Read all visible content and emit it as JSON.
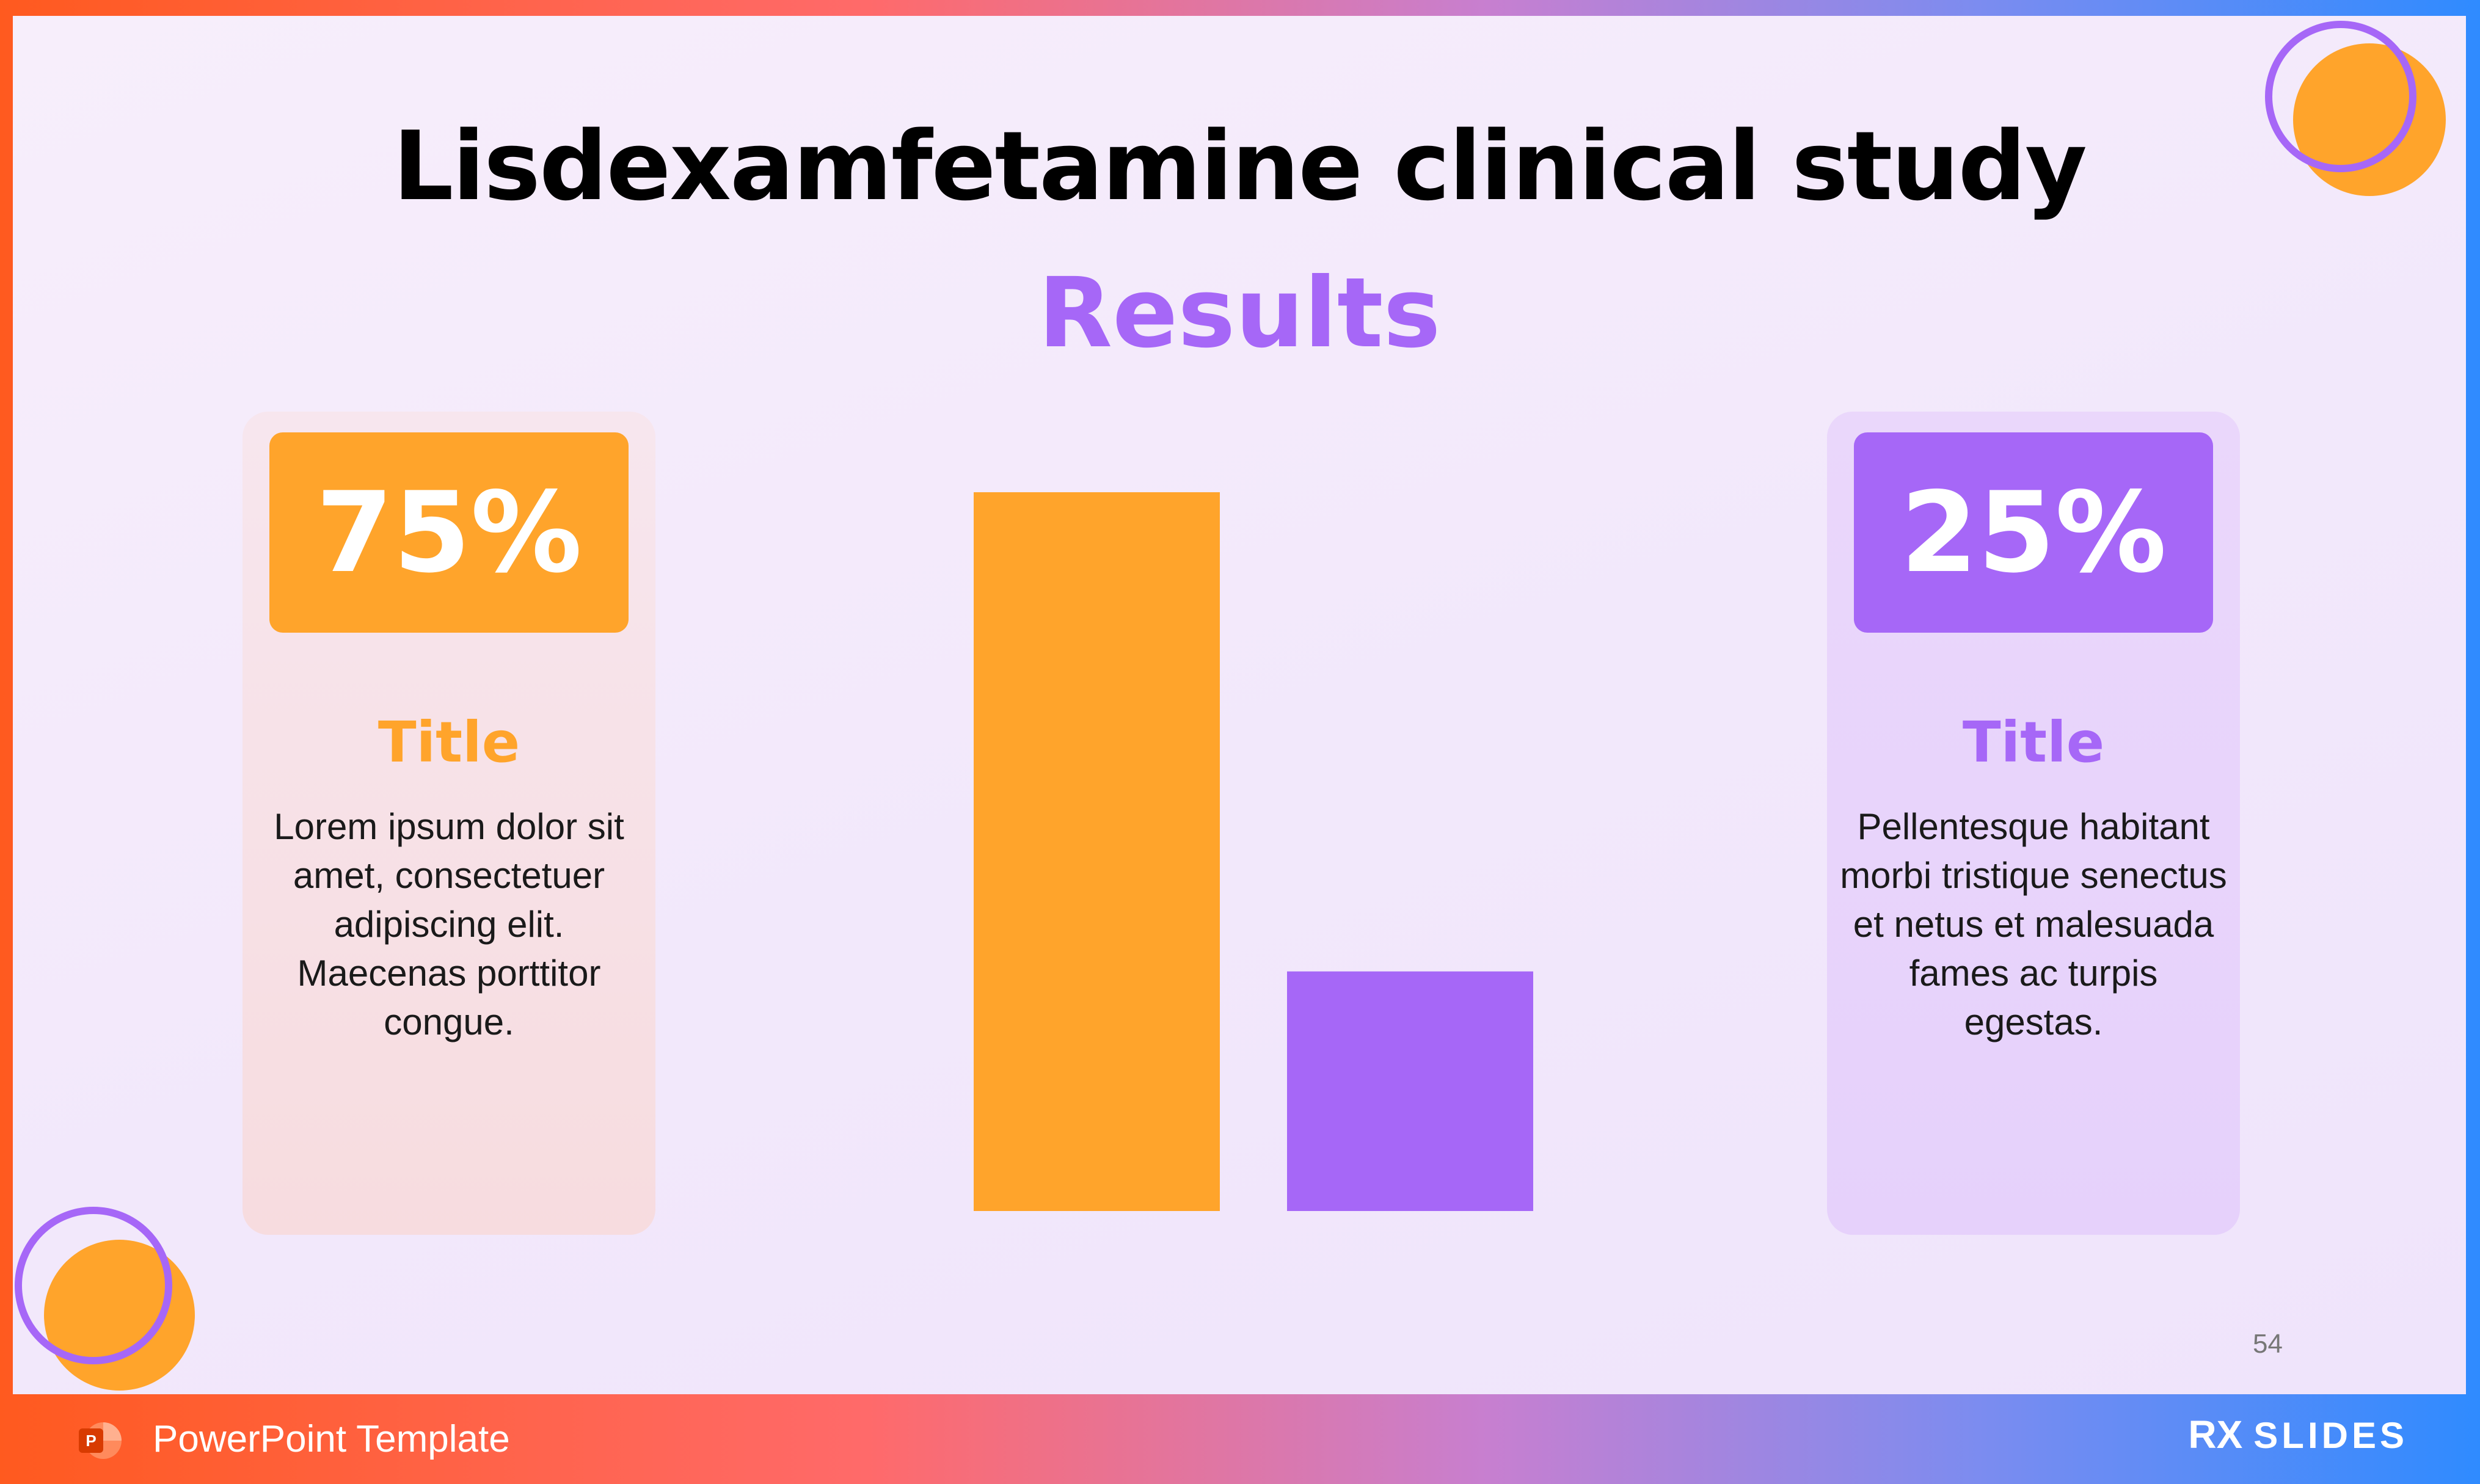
{
  "slide": {
    "title": "Lisdexamfetamine clinical study",
    "subtitle": "Results",
    "page_number": "54"
  },
  "cards": [
    {
      "percent": "75%",
      "title": "Title",
      "body": "Lorem ipsum dolor sit amet, consectetuer adipiscing elit. Maecenas porttitor congue."
    },
    {
      "percent": "25%",
      "title": "Title",
      "body": "Pellentesque habitant morbi tristique senectus et netus et malesuada fames ac turpis egestas."
    }
  ],
  "chart_data": {
    "type": "bar",
    "categories": [
      "",
      ""
    ],
    "values": [
      75,
      25
    ],
    "colors": [
      "#ffa42b",
      "#a667f7"
    ],
    "ylim": [
      0,
      75
    ],
    "grid": false,
    "title": "",
    "xlabel": "",
    "ylabel": ""
  },
  "footer": {
    "label": "PowerPoint Template",
    "brand_rx": "RX",
    "brand_name": "SLIDES",
    "app_icon": "powerpoint-icon"
  },
  "colors": {
    "orange": "#ffa42b",
    "purple": "#a667f7"
  }
}
